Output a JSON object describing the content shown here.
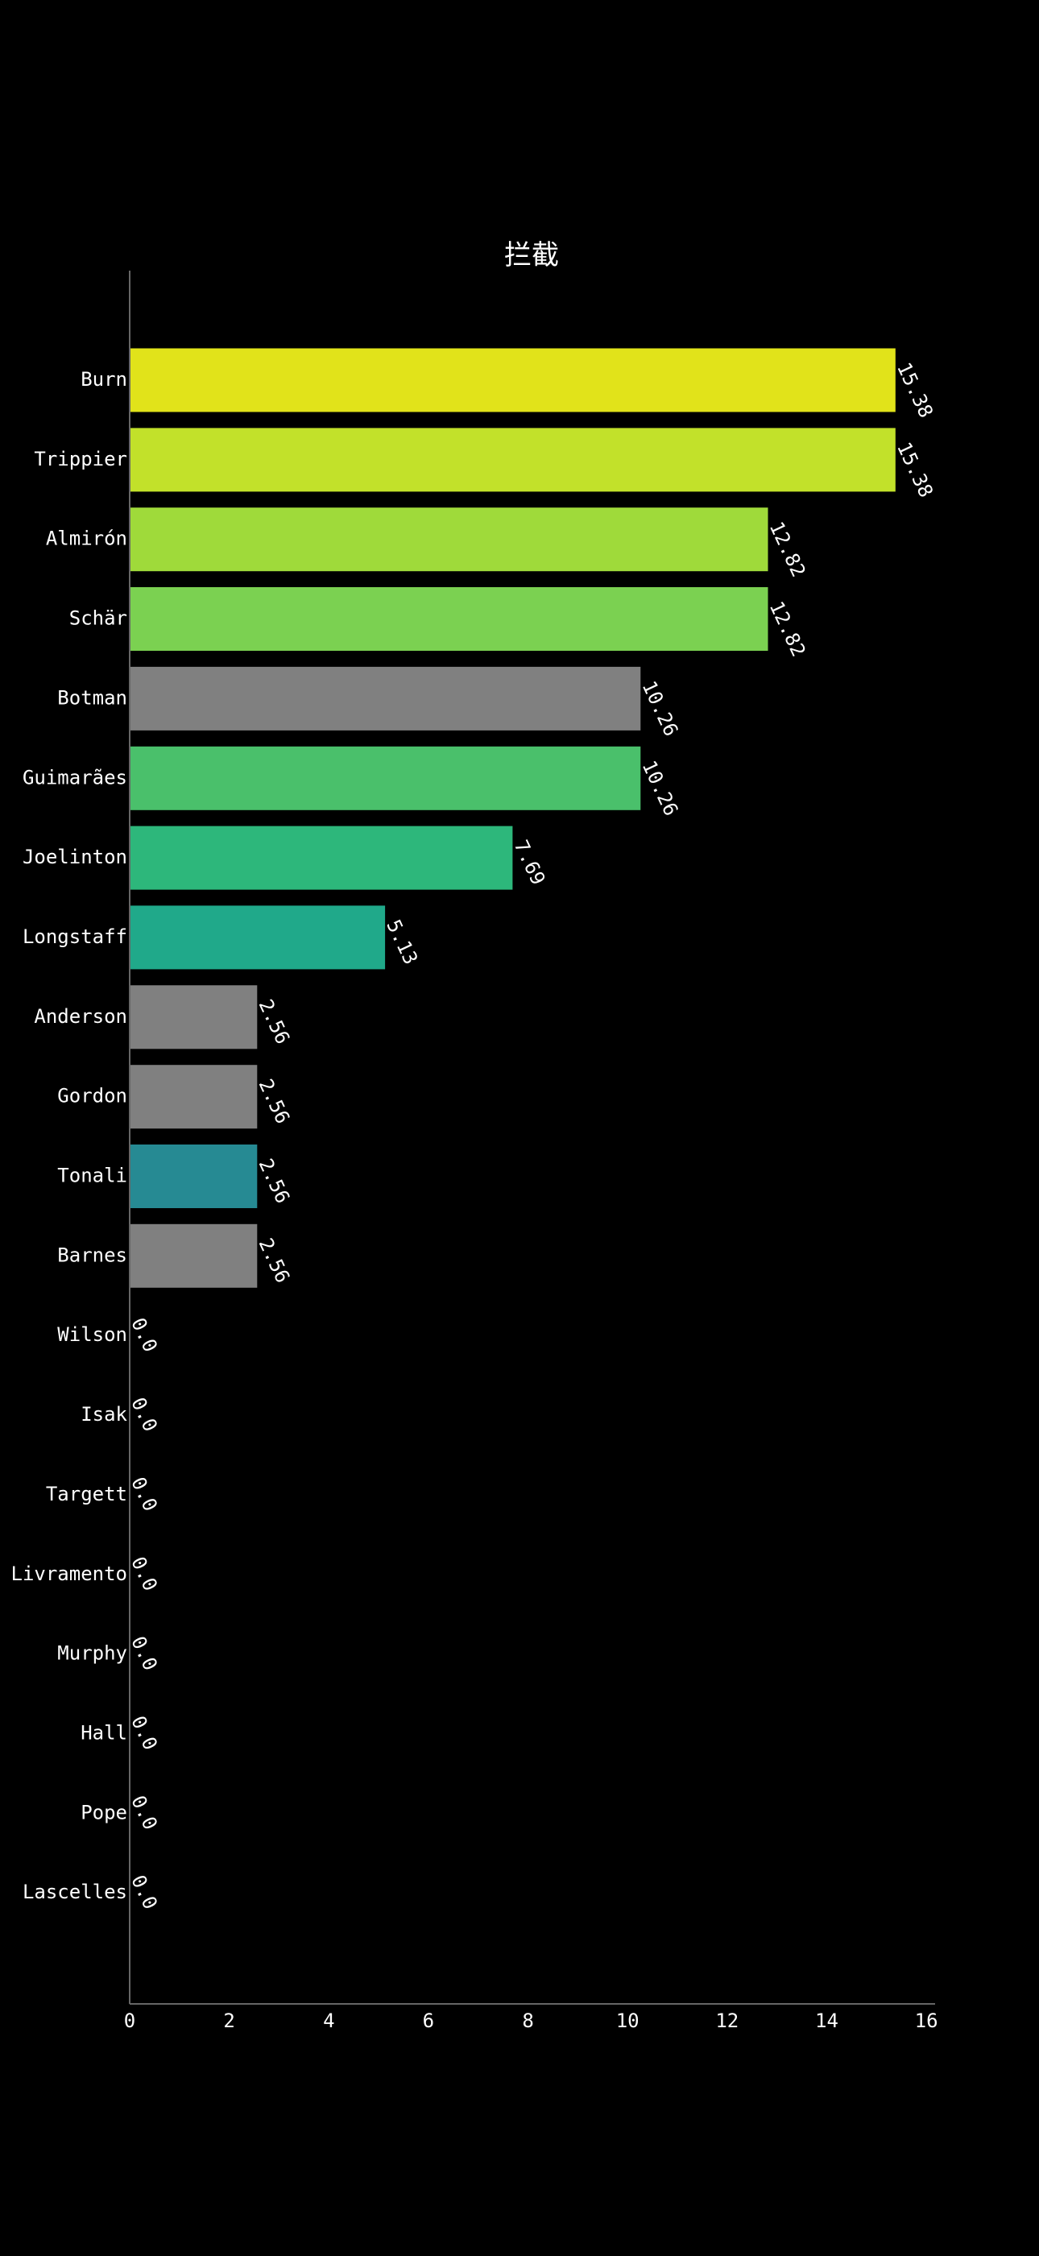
{
  "chart_data": {
    "type": "bar",
    "orientation": "horizontal",
    "title": "拦截",
    "xlabel": "",
    "ylabel": "",
    "xlim": [
      0,
      16
    ],
    "xticks": [
      "0",
      "2",
      "4",
      "6",
      "8",
      "10",
      "12",
      "14",
      "16"
    ],
    "grid": false,
    "background": "#000000",
    "categories": [
      "Burn",
      "Trippier",
      "Almirón",
      "Schär",
      "Botman",
      "Guimarães",
      "Joelinton",
      "Longstaff",
      "Anderson",
      "Gordon",
      "Tonali",
      "Barnes",
      "Wilson",
      "Isak",
      "Targett",
      "Livramento",
      "Murphy",
      "Hall",
      "Pope",
      "Lascelles"
    ],
    "values": [
      15.38,
      15.38,
      12.82,
      12.82,
      10.26,
      10.26,
      7.69,
      5.13,
      2.56,
      2.56,
      2.56,
      2.56,
      0.0,
      0.0,
      0.0,
      0.0,
      0.0,
      0.0,
      0.0,
      0.0
    ],
    "value_labels": [
      "15.38",
      "15.38",
      "12.82",
      "12.82",
      "10.26",
      "10.26",
      "7.69",
      "5.13",
      "2.56",
      "2.56",
      "2.56",
      "2.56",
      "0.0",
      "0.0",
      "0.0",
      "0.0",
      "0.0",
      "0.0",
      "0.0",
      "0.0"
    ],
    "colors": [
      "#e1e31a",
      "#c2e12a",
      "#9fda3a",
      "#7bd151",
      "#808080",
      "#4ac06b",
      "#2db77b",
      "#20a98a",
      "#808080",
      "#808080",
      "#268a93",
      "#808080",
      "#808080",
      "#808080",
      "#808080",
      "#808080",
      "#808080",
      "#808080",
      "#808080",
      "#808080"
    ]
  }
}
